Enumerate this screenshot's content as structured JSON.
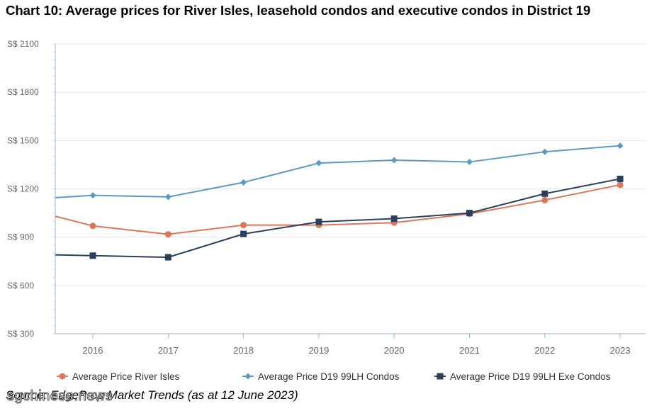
{
  "title": "Chart 10: Average prices for River Isles, leasehold condos and executive condos in District 19",
  "source": "Source: EdgeProp Market Trends (as at 12 June 2023)",
  "watermark": "sgchinese.news",
  "colors": {
    "river_isles": "#d9775a",
    "d19_condos": "#5b9bc3",
    "d19_exe": "#2e3f5c",
    "grid": "#e6e6e6",
    "axis": "#9fb3c8"
  },
  "chart_data": {
    "type": "line",
    "categories": [
      "2016",
      "2017",
      "2018",
      "2019",
      "2020",
      "2021",
      "2022",
      "2023"
    ],
    "ylim": [
      300,
      2100
    ],
    "yticks": [
      300,
      600,
      900,
      1200,
      1500,
      1800,
      2100
    ],
    "ytick_labels": [
      "S$ 300",
      "S$ 600",
      "S$ 900",
      "S$ 1200",
      "S$ 1500",
      "S$ 1800",
      "S$ 2100"
    ],
    "series": [
      {
        "name": "Average Price River Isles",
        "key": "river_isles",
        "marker": "circle",
        "start_value": 1030,
        "values": [
          970,
          918,
          975,
          975,
          990,
          1045,
          1130,
          1225
        ]
      },
      {
        "name": "Average Price D19 99LH Condos",
        "key": "d19_condos",
        "marker": "diamond",
        "start_value": 1145,
        "values": [
          1160,
          1150,
          1240,
          1360,
          1378,
          1367,
          1430,
          1468
        ]
      },
      {
        "name": "Average Price D19 99LH Exe Condos",
        "key": "d19_exe",
        "marker": "square",
        "start_value": 790,
        "values": [
          785,
          775,
          920,
          995,
          1015,
          1050,
          1170,
          1262
        ]
      }
    ],
    "legend_position": "bottom",
    "grid": true
  }
}
